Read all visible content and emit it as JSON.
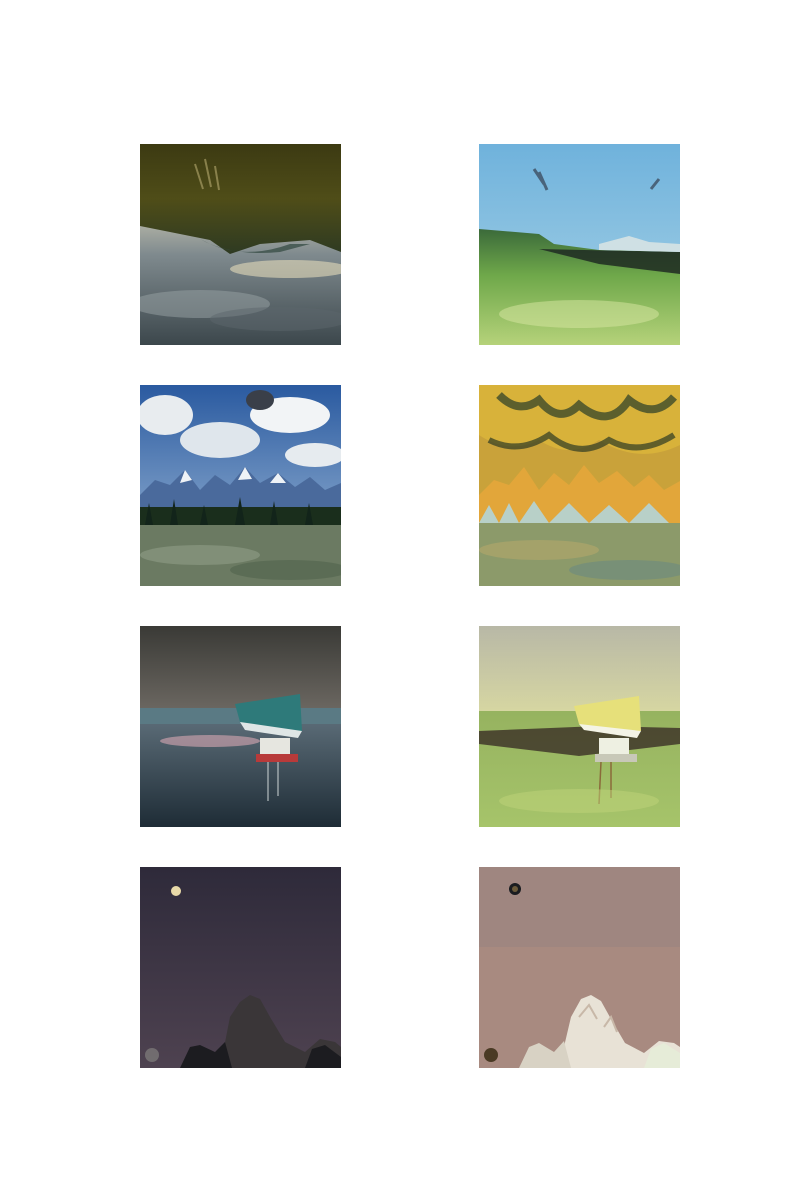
{
  "grid": {
    "rows": [
      {
        "left": "input-upside-down-hillside-sky",
        "right": "stylized-grassland-sky"
      },
      {
        "left": "input-mountain-range-meadow",
        "right": "stylized-golden-mountains"
      },
      {
        "left": "input-upside-down-boat-lake",
        "right": "stylized-yellow-boat"
      },
      {
        "left": "input-night-moon-rock",
        "right": "stylized-pink-moon-rock"
      }
    ]
  }
}
